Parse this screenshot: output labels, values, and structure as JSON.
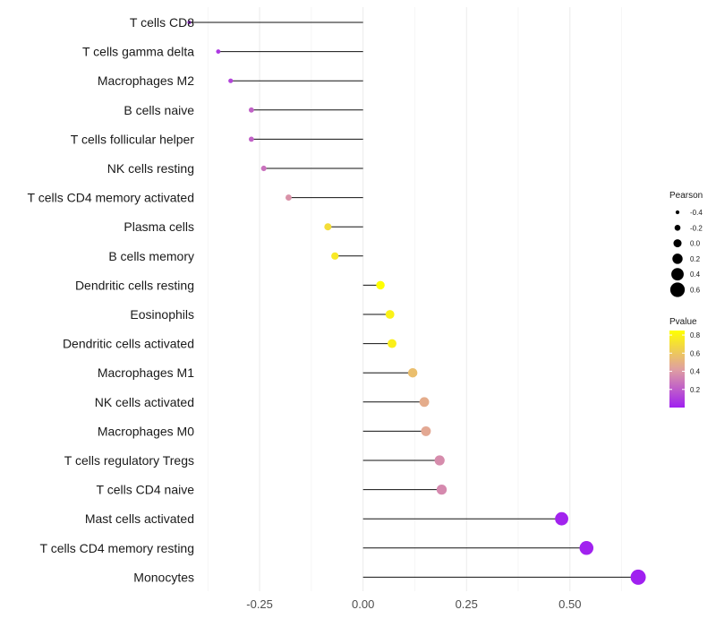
{
  "chart_data": {
    "type": "lollipop",
    "xlim": [
      -0.38,
      0.68
    ],
    "x_ticks": [
      -0.25,
      0.0,
      0.25,
      0.5
    ],
    "x_tick_labels": [
      "-0.25",
      "0.00",
      "0.25",
      "0.50"
    ],
    "grid": true,
    "points": [
      {
        "label": "T cells CD8",
        "value": -0.42,
        "pvalue": 0.02
      },
      {
        "label": "T cells gamma delta",
        "value": -0.35,
        "pvalue": 0.08
      },
      {
        "label": "Macrophages M2",
        "value": -0.32,
        "pvalue": 0.12
      },
      {
        "label": "B cells naive",
        "value": -0.27,
        "pvalue": 0.22
      },
      {
        "label": "T cells follicular helper",
        "value": -0.27,
        "pvalue": 0.22
      },
      {
        "label": "NK cells resting",
        "value": -0.24,
        "pvalue": 0.27
      },
      {
        "label": "T cells CD4 memory activated",
        "value": -0.18,
        "pvalue": 0.38
      },
      {
        "label": "Plasma cells",
        "value": -0.085,
        "pvalue": 0.7
      },
      {
        "label": "B cells memory",
        "value": -0.068,
        "pvalue": 0.75
      },
      {
        "label": "Dendritic cells resting",
        "value": 0.042,
        "pvalue": 0.86
      },
      {
        "label": "Eosinophils",
        "value": 0.065,
        "pvalue": 0.79
      },
      {
        "label": "Dendritic cells activated",
        "value": 0.07,
        "pvalue": 0.78
      },
      {
        "label": "Macrophages M1",
        "value": 0.12,
        "pvalue": 0.56
      },
      {
        "label": "NK cells activated",
        "value": 0.148,
        "pvalue": 0.48
      },
      {
        "label": "Macrophages M0",
        "value": 0.152,
        "pvalue": 0.46
      },
      {
        "label": "T cells regulatory  Tregs ",
        "value": 0.185,
        "pvalue": 0.36
      },
      {
        "label": "T cells CD4 naive",
        "value": 0.19,
        "pvalue": 0.35
      },
      {
        "label": "Mast cells activated",
        "value": 0.48,
        "pvalue": 0.01
      },
      {
        "label": "T cells CD4 memory resting",
        "value": 0.54,
        "pvalue": 0.005
      },
      {
        "label": "Monocytes",
        "value": 0.665,
        "pvalue": 0.001
      }
    ],
    "legend_size": {
      "title": "Pearson",
      "values": [
        -0.4,
        -0.2,
        0.0,
        0.2,
        0.4,
        0.6
      ],
      "labels": [
        "-0.4",
        "-0.2",
        "0.0",
        "0.2",
        "0.4",
        "0.6"
      ]
    },
    "legend_color": {
      "title": "Pvalue",
      "range": [
        0.0,
        0.85
      ],
      "ticks": [
        0.2,
        0.4,
        0.6,
        0.8
      ],
      "labels": [
        "0.2",
        "0.4",
        "0.6",
        "0.8"
      ],
      "low_color": "#a020f0",
      "mid_color": "#e0a0a0",
      "high_color": "#ffff00"
    }
  }
}
